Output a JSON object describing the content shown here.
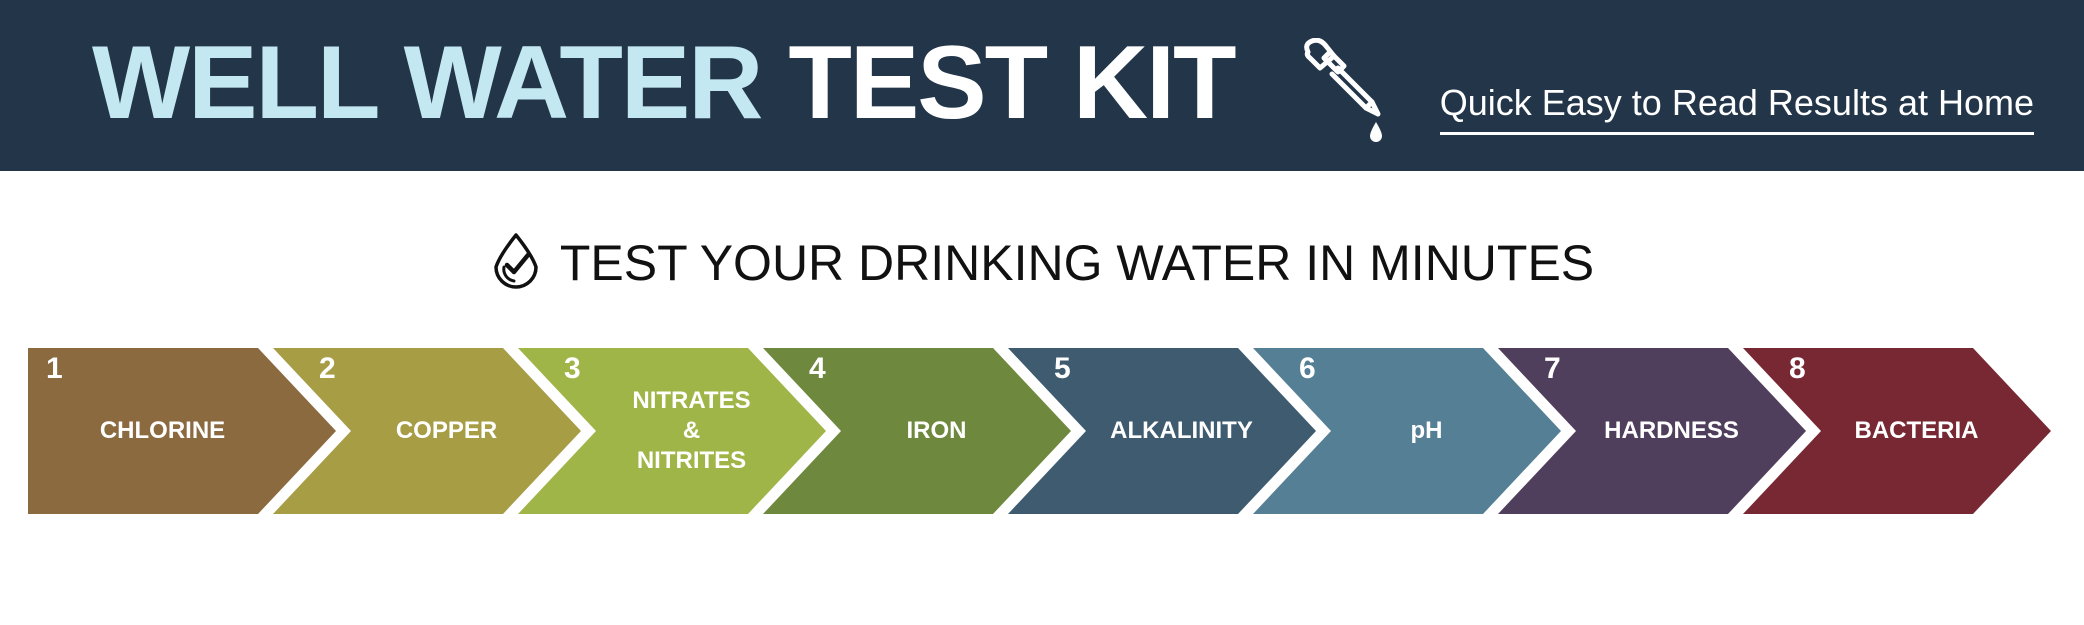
{
  "header": {
    "title_part1": "WELL WATER",
    "title_part2": "TEST KIT",
    "icon": "dropper-icon",
    "tagline": "Quick Easy to Read Results at Home",
    "colors": {
      "background": "#223549",
      "title_light": "#c3e8f2",
      "title_white": "#ffffff"
    }
  },
  "subheading": {
    "icon": "water-drop-check-icon",
    "text": "TEST YOUR DRINKING WATER IN MINUTES"
  },
  "steps": [
    {
      "number": "1",
      "label": "CHLORINE",
      "color": "#8b6a40"
    },
    {
      "number": "2",
      "label": "COPPER",
      "color": "#a69d45"
    },
    {
      "number": "3",
      "label": "NITRATES\n&\nNITRITES",
      "color": "#a0b548"
    },
    {
      "number": "4",
      "label": "IRON",
      "color": "#6e893d"
    },
    {
      "number": "5",
      "label": "ALKALINITY",
      "color": "#3e5b6f"
    },
    {
      "number": "6",
      "label": "pH",
      "color": "#557f94"
    },
    {
      "number": "7",
      "label": "HARDNESS",
      "color": "#503f5c"
    },
    {
      "number": "8",
      "label": "BACTERIA",
      "color": "#772833"
    }
  ]
}
